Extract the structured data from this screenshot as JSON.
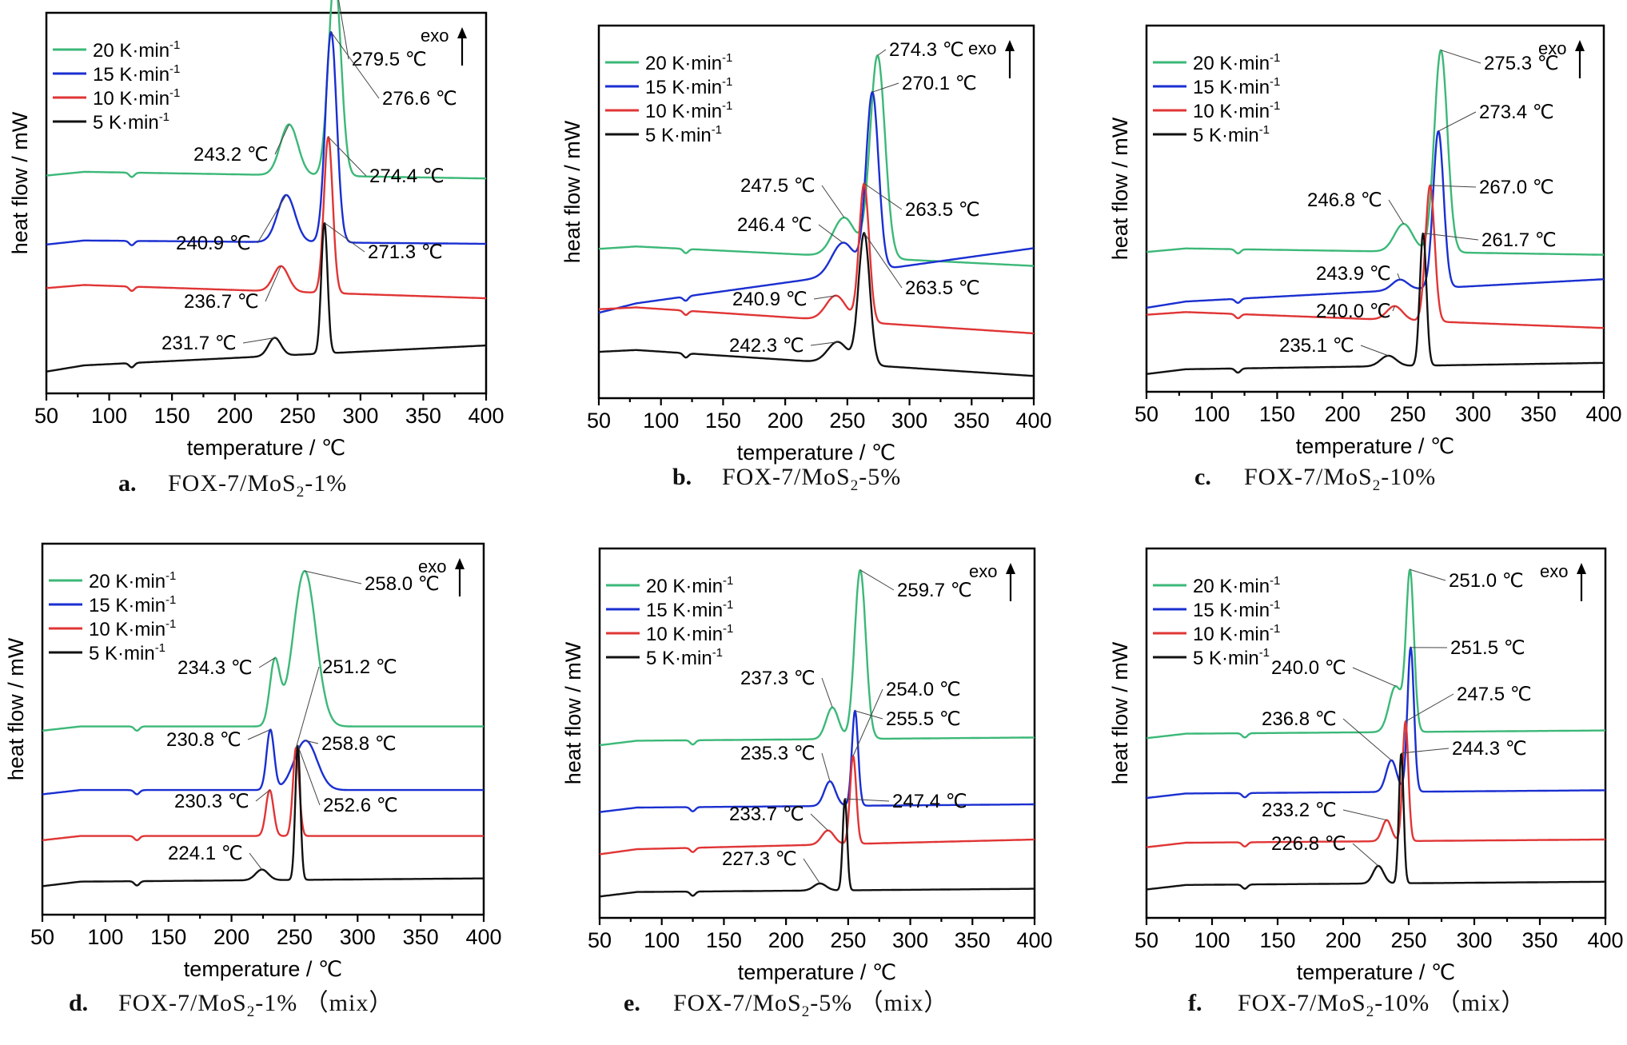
{
  "colors": {
    "20 K·min-1": "#3cb878",
    "15 K·min-1": "#1a2fd0",
    "10 K·min-1": "#e03535",
    "5 K·min-1": "#111111"
  },
  "legend_unit": "K·min",
  "legend_exp": "-1",
  "exo_label": "exo",
  "exo_icon": "up-arrow-icon",
  "chart_data": [
    {
      "type": "line",
      "caption": {
        "letter": "a.",
        "pre": "FOX-7/MoS",
        "sub": "2",
        "post": "-1%"
      },
      "xlabel": "temperature / ℃",
      "ylabel": "heat flow / mW",
      "xlim": [
        50,
        400
      ],
      "xticks": [
        "50",
        "100",
        "150",
        "200",
        "250",
        "300",
        "350",
        "400"
      ],
      "y_ticks_shown": false,
      "legend": [
        "20",
        "15",
        "10",
        "5"
      ],
      "series": [
        {
          "rate": "20",
          "baseline": [
            0.59,
            0.57
          ],
          "peaks": [
            {
              "x": 243.2,
              "h": 0.14,
              "w": 7
            },
            {
              "x": 279.5,
              "h": 0.55,
              "w": 5
            }
          ],
          "dip": 118
        },
        {
          "rate": "15",
          "baseline": [
            0.4,
            0.39
          ],
          "peaks": [
            {
              "x": 240.9,
              "h": 0.13,
              "w": 7
            },
            {
              "x": 276.6,
              "h": 0.58,
              "w": 4.5
            }
          ],
          "dip": 118
        },
        {
          "rate": "10",
          "baseline": [
            0.28,
            0.24
          ],
          "peaks": [
            {
              "x": 236.7,
              "h": 0.07,
              "w": 6
            },
            {
              "x": 274.4,
              "h": 0.43,
              "w": 3.5
            }
          ],
          "dip": 118
        },
        {
          "rate": "5",
          "baseline": [
            0.05,
            0.11
          ],
          "peaks": [
            {
              "x": 231.7,
              "h": 0.05,
              "w": 5
            },
            {
              "x": 271.3,
              "h": 0.36,
              "w": 2.5
            }
          ],
          "dip": 118
        }
      ],
      "annotations": [
        {
          "text": "279.5 ℃",
          "series": "20",
          "x": 279.5
        },
        {
          "text": "276.6 ℃",
          "series": "15",
          "x": 276.6
        },
        {
          "text": "243.2 ℃",
          "series": "20",
          "x": 243.2
        },
        {
          "text": "274.4 ℃",
          "series": "10",
          "x": 274.4
        },
        {
          "text": "240.9 ℃",
          "series": "15",
          "x": 240.9
        },
        {
          "text": "271.3 ℃",
          "series": "5",
          "x": 271.3
        },
        {
          "text": "236.7 ℃",
          "series": "10",
          "x": 236.7
        },
        {
          "text": "231.7 ℃",
          "series": "5",
          "x": 231.7
        }
      ]
    },
    {
      "type": "line",
      "caption": {
        "letter": "b.",
        "pre": "FOX-7/MoS",
        "sub": "2",
        "post": "-5%"
      },
      "xlabel": "temperature / ℃",
      "ylabel": "heat flow / mW",
      "xlim": [
        50,
        400
      ],
      "xticks": [
        "50",
        "100",
        "150",
        "200",
        "250",
        "300",
        "350",
        "400"
      ],
      "y_ticks_shown": false,
      "legend": [
        "20",
        "15",
        "10",
        "5"
      ],
      "series": [
        {
          "rate": "20",
          "baseline": [
            0.41,
            0.35
          ],
          "peaks": [
            {
              "x": 247.5,
              "h": 0.11,
              "w": 9
            },
            {
              "x": 274.3,
              "h": 0.57,
              "w": 6
            }
          ],
          "dip": 120
        },
        {
          "rate": "15",
          "baseline": [
            0.23,
            0.4
          ],
          "peaks": [
            {
              "x": 246.4,
              "h": 0.09,
              "w": 9
            },
            {
              "x": 270.1,
              "h": 0.5,
              "w": 5
            }
          ],
          "dip": 120
        },
        {
          "rate": "10",
          "baseline": [
            0.24,
            0.16
          ],
          "peaks": [
            {
              "x": 240.9,
              "h": 0.07,
              "w": 8
            },
            {
              "x": 263.5,
              "h": 0.39,
              "w": 4
            }
          ],
          "dip": 120
        },
        {
          "rate": "5",
          "baseline": [
            0.12,
            0.04
          ],
          "peaks": [
            {
              "x": 242.3,
              "h": 0.06,
              "w": 8
            },
            {
              "x": 263.5,
              "h": 0.37,
              "w": 4.5
            }
          ],
          "dip": 120
        }
      ],
      "annotations": [
        {
          "text": "274.3 ℃",
          "series": "20",
          "x": 274.3
        },
        {
          "text": "270.1 ℃",
          "series": "15",
          "x": 270.1
        },
        {
          "text": "247.5 ℃",
          "series": "20",
          "x": 247.5
        },
        {
          "text": "263.5 ℃",
          "series": "10",
          "x": 263.5
        },
        {
          "text": "246.4 ℃",
          "series": "15",
          "x": 246.4
        },
        {
          "text": "263.5 ℃",
          "series": "5",
          "x": 263.5
        },
        {
          "text": "240.9 ℃",
          "series": "10",
          "x": 240.9
        },
        {
          "text": "242.3 ℃",
          "series": "5",
          "x": 242.3
        }
      ]
    },
    {
      "type": "line",
      "caption": {
        "letter": "c.",
        "pre": "FOX-7/MoS",
        "sub": "2",
        "post": "-10%"
      },
      "xlabel": "temperature / ℃",
      "ylabel": "heat flow / mW",
      "xlim": [
        50,
        400
      ],
      "xticks": [
        "50",
        "100",
        "150",
        "200",
        "250",
        "300",
        "350",
        "400"
      ],
      "y_ticks_shown": false,
      "legend": [
        "20",
        "15",
        "10",
        "5"
      ],
      "series": [
        {
          "rate": "20",
          "baseline": [
            0.39,
            0.37
          ],
          "peaks": [
            {
              "x": 246.8,
              "h": 0.08,
              "w": 7
            },
            {
              "x": 275.3,
              "h": 0.58,
              "w": 5
            }
          ],
          "dip": 120
        },
        {
          "rate": "15",
          "baseline": [
            0.23,
            0.3
          ],
          "peaks": [
            {
              "x": 243.9,
              "h": 0.03,
              "w": 6
            },
            {
              "x": 273.4,
              "h": 0.45,
              "w": 4
            }
          ],
          "dip": 120
        },
        {
          "rate": "10",
          "baseline": [
            0.21,
            0.16
          ],
          "peaks": [
            {
              "x": 240.0,
              "h": 0.04,
              "w": 6
            },
            {
              "x": 267.0,
              "h": 0.39,
              "w": 3.5
            }
          ],
          "dip": 120
        },
        {
          "rate": "5",
          "baseline": [
            0.04,
            0.06
          ],
          "peaks": [
            {
              "x": 235.1,
              "h": 0.03,
              "w": 6
            },
            {
              "x": 261.7,
              "h": 0.38,
              "w": 2.5
            }
          ],
          "dip": 120
        }
      ],
      "annotations": [
        {
          "text": "275.3 ℃",
          "series": "20",
          "x": 275.3
        },
        {
          "text": "273.4 ℃",
          "series": "15",
          "x": 273.4
        },
        {
          "text": "267.0 ℃",
          "series": "10",
          "x": 267.0
        },
        {
          "text": "246.8 ℃",
          "series": "20",
          "x": 246.8
        },
        {
          "text": "261.7 ℃",
          "series": "5",
          "x": 261.7
        },
        {
          "text": "243.9 ℃",
          "series": "15",
          "x": 243.9
        },
        {
          "text": "240.0 ℃",
          "series": "10",
          "x": 240.0
        },
        {
          "text": "235.1 ℃",
          "series": "5",
          "x": 235.1
        }
      ]
    },
    {
      "type": "line",
      "caption": {
        "letter": "d.",
        "pre": "FOX-7/MoS",
        "sub": "2",
        "post": "-1% （mix）"
      },
      "xlabel": "temperature / ℃",
      "ylabel": "heat flow / mW",
      "xlim": [
        50,
        400
      ],
      "xticks": [
        "50",
        "100",
        "150",
        "200",
        "250",
        "300",
        "350",
        "400"
      ],
      "y_ticks_shown": false,
      "legend": [
        "20",
        "15",
        "10",
        "5"
      ],
      "series": [
        {
          "rate": "20",
          "baseline": [
            0.51,
            0.51
          ],
          "peaks": [
            {
              "x": 234.3,
              "h": 0.18,
              "w": 4
            },
            {
              "x": 258.0,
              "h": 0.44,
              "w": 9
            }
          ],
          "dip": 125
        },
        {
          "rate": "15",
          "baseline": [
            0.33,
            0.33
          ],
          "peaks": [
            {
              "x": 230.8,
              "h": 0.17,
              "w": 3
            },
            {
              "x": 258.8,
              "h": 0.14,
              "w": 9
            }
          ],
          "dip": 125
        },
        {
          "rate": "10",
          "baseline": [
            0.2,
            0.2
          ],
          "peaks": [
            {
              "x": 230.3,
              "h": 0.13,
              "w": 3
            },
            {
              "x": 251.2,
              "h": 0.25,
              "w": 2.5
            }
          ],
          "dip": 125
        },
        {
          "rate": "5",
          "baseline": [
            0.07,
            0.08
          ],
          "peaks": [
            {
              "x": 224.1,
              "h": 0.03,
              "w": 5
            },
            {
              "x": 252.6,
              "h": 0.38,
              "w": 2
            }
          ],
          "dip": 125
        }
      ],
      "annotations": [
        {
          "text": "258.0 ℃",
          "series": "20",
          "x": 258.0
        },
        {
          "text": "234.3 ℃",
          "series": "20",
          "x": 234.3
        },
        {
          "text": "251.2 ℃",
          "series": "10",
          "x": 251.2
        },
        {
          "text": "230.8 ℃",
          "series": "15",
          "x": 230.8
        },
        {
          "text": "258.8 ℃",
          "series": "15",
          "x": 258.8
        },
        {
          "text": "230.3 ℃",
          "series": "10",
          "x": 230.3
        },
        {
          "text": "252.6 ℃",
          "series": "5",
          "x": 252.6
        },
        {
          "text": "224.1 ℃",
          "series": "5",
          "x": 224.1
        }
      ]
    },
    {
      "type": "line",
      "caption": {
        "letter": "e.",
        "pre": "FOX-7/MoS",
        "sub": "2",
        "post": "-5% （mix）"
      },
      "xlabel": "temperature / ℃",
      "ylabel": "heat flow / mW",
      "xlim": [
        50,
        400
      ],
      "xticks": [
        "50",
        "100",
        "150",
        "200",
        "250",
        "300",
        "350",
        "400"
      ],
      "y_ticks_shown": false,
      "legend": [
        "20",
        "15",
        "10",
        "5"
      ],
      "series": [
        {
          "rate": "20",
          "baseline": [
            0.48,
            0.49
          ],
          "peaks": [
            {
              "x": 237.3,
              "h": 0.09,
              "w": 5
            },
            {
              "x": 259.7,
              "h": 0.48,
              "w": 4.5
            }
          ],
          "dip": 125
        },
        {
          "rate": "15",
          "baseline": [
            0.29,
            0.3
          ],
          "peaks": [
            {
              "x": 235.3,
              "h": 0.07,
              "w": 4.5
            },
            {
              "x": 255.5,
              "h": 0.27,
              "w": 2.5
            }
          ],
          "dip": 125
        },
        {
          "rate": "10",
          "baseline": [
            0.17,
            0.2
          ],
          "peaks": [
            {
              "x": 233.7,
              "h": 0.04,
              "w": 5
            },
            {
              "x": 254.0,
              "h": 0.25,
              "w": 2.5
            }
          ],
          "dip": 125
        },
        {
          "rate": "5",
          "baseline": [
            0.05,
            0.06
          ],
          "peaks": [
            {
              "x": 227.3,
              "h": 0.02,
              "w": 5
            },
            {
              "x": 247.4,
              "h": 0.26,
              "w": 1.8
            }
          ],
          "dip": 125
        }
      ],
      "annotations": [
        {
          "text": "259.7 ℃",
          "series": "20",
          "x": 259.7
        },
        {
          "text": "237.3 ℃",
          "series": "20",
          "x": 237.3
        },
        {
          "text": "254.0 ℃",
          "series": "10",
          "x": 254.0
        },
        {
          "text": "255.5 ℃",
          "series": "15",
          "x": 255.5
        },
        {
          "text": "235.3 ℃",
          "series": "15",
          "x": 235.3
        },
        {
          "text": "247.4 ℃",
          "series": "5",
          "x": 247.4
        },
        {
          "text": "233.7 ℃",
          "series": "10",
          "x": 233.7
        },
        {
          "text": "227.3 ℃",
          "series": "5",
          "x": 227.3
        }
      ]
    },
    {
      "type": "line",
      "caption": {
        "letter": "f.",
        "pre": "FOX-7/MoS",
        "sub": "2",
        "post": "-10% （mix）"
      },
      "xlabel": "temperature / ℃",
      "ylabel": "heat flow / mW",
      "xlim": [
        50,
        400
      ],
      "xticks": [
        "50",
        "100",
        "150",
        "200",
        "250",
        "300",
        "350",
        "400"
      ],
      "y_ticks_shown": false,
      "legend": [
        "20",
        "15",
        "10",
        "5"
      ],
      "series": [
        {
          "rate": "20",
          "baseline": [
            0.5,
            0.51
          ],
          "peaks": [
            {
              "x": 240.0,
              "h": 0.13,
              "w": 5
            },
            {
              "x": 251.0,
              "h": 0.45,
              "w": 3
            }
          ],
          "dip": 125
        },
        {
          "rate": "15",
          "baseline": [
            0.33,
            0.34
          ],
          "peaks": [
            {
              "x": 236.8,
              "h": 0.09,
              "w": 4
            },
            {
              "x": 251.5,
              "h": 0.41,
              "w": 2.5
            }
          ],
          "dip": 125
        },
        {
          "rate": "10",
          "baseline": [
            0.19,
            0.2
          ],
          "peaks": [
            {
              "x": 233.2,
              "h": 0.06,
              "w": 3.5
            },
            {
              "x": 247.5,
              "h": 0.34,
              "w": 2.2
            }
          ],
          "dip": 125
        },
        {
          "rate": "5",
          "baseline": [
            0.07,
            0.08
          ],
          "peaks": [
            {
              "x": 226.8,
              "h": 0.05,
              "w": 4
            },
            {
              "x": 244.3,
              "h": 0.37,
              "w": 1.8
            }
          ],
          "dip": 125
        }
      ],
      "annotations": [
        {
          "text": "251.0 ℃",
          "series": "20",
          "x": 251.0
        },
        {
          "text": "251.5 ℃",
          "series": "15",
          "x": 251.5
        },
        {
          "text": "240.0 ℃",
          "series": "20",
          "x": 240.0
        },
        {
          "text": "247.5 ℃",
          "series": "10",
          "x": 247.5
        },
        {
          "text": "236.8 ℃",
          "series": "15",
          "x": 236.8
        },
        {
          "text": "244.3 ℃",
          "series": "5",
          "x": 244.3
        },
        {
          "text": "233.2 ℃",
          "series": "10",
          "x": 233.2
        },
        {
          "text": "226.8 ℃",
          "series": "5",
          "x": 226.8
        }
      ]
    }
  ]
}
